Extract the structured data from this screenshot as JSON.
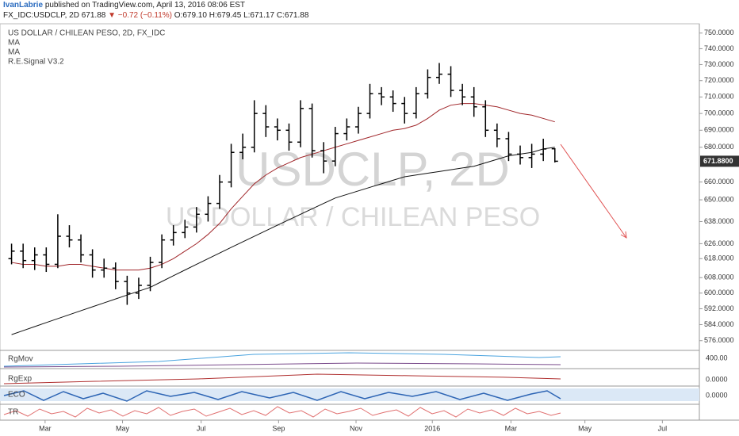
{
  "header": {
    "publisher": "IvanLabrie",
    "published": "published on TradingView.com, April 13, 2016 08:06 EST",
    "symbol": "FX_IDC:USDCLP, 2D",
    "last": "671.88",
    "change": "▼ −0.72 (−0.11%)",
    "open": "O:679.10",
    "high": "H:679.45",
    "low": "L:671.17",
    "close": "C:671.88"
  },
  "legend": [
    "US DOLLAR / CHILEAN PESO, 2D, FX_IDC",
    "MA",
    "MA",
    "R.E.Signal V3.2"
  ],
  "watermark": {
    "symbol": "USDCLP, 2D",
    "name": "US DOLLAR / CHILEAN PESO"
  },
  "last_price_label": "671.8800",
  "panes": [
    {
      "name": "RgMov",
      "label": "400.00"
    },
    {
      "name": "RgExp",
      "label": "0.0000"
    },
    {
      "name": "ECO",
      "label": "0.0000"
    },
    {
      "name": "TR"
    }
  ],
  "chart_data": {
    "type": "ohlc",
    "log_scale": true,
    "bar_color": "#000000",
    "x": [
      1,
      2,
      3,
      4,
      5,
      6,
      7,
      8,
      9,
      10,
      11,
      12,
      13,
      14,
      15,
      16,
      17,
      18,
      19,
      20,
      21,
      22,
      23,
      24,
      25,
      26,
      27,
      28,
      29,
      30,
      31,
      32,
      33,
      34,
      35,
      36,
      37,
      38,
      39,
      40,
      41,
      42,
      43,
      44,
      45,
      46,
      47,
      48
    ],
    "open": [
      618,
      622,
      617,
      620,
      615,
      630,
      628,
      620,
      612,
      613,
      606,
      600,
      604,
      616,
      628,
      632,
      635,
      642,
      648,
      660,
      677,
      680,
      700,
      692,
      690,
      683,
      703,
      678,
      672,
      688,
      692,
      700,
      712,
      710,
      706,
      700,
      712,
      722,
      724,
      714,
      710,
      704,
      690,
      685,
      676,
      674,
      676,
      679.1
    ],
    "high": [
      626,
      626,
      624,
      624,
      642,
      636,
      631,
      623,
      618,
      616,
      609,
      608,
      619,
      631,
      636,
      639,
      646,
      652,
      664,
      682,
      688,
      708,
      705,
      697,
      694,
      708,
      706,
      683,
      692,
      697,
      704,
      718,
      716,
      714,
      710,
      716,
      727,
      731,
      729,
      718,
      716,
      708,
      694,
      689,
      681,
      682,
      685,
      679.45
    ],
    "low": [
      615,
      613,
      612,
      611,
      613,
      624,
      616,
      608,
      608,
      602,
      594,
      597,
      601,
      613,
      625,
      629,
      632,
      638,
      645,
      657,
      673,
      677,
      686,
      684,
      678,
      680,
      674,
      665,
      669,
      684,
      688,
      697,
      705,
      701,
      694,
      697,
      709,
      718,
      710,
      705,
      698,
      686,
      680,
      672,
      670,
      668,
      672,
      671.17
    ],
    "close": [
      622,
      617,
      620,
      615,
      630,
      628,
      620,
      612,
      613,
      606,
      600,
      604,
      616,
      628,
      632,
      635,
      642,
      648,
      660,
      677,
      680,
      700,
      692,
      690,
      683,
      703,
      678,
      672,
      688,
      692,
      700,
      712,
      710,
      706,
      700,
      712,
      722,
      724,
      714,
      710,
      704,
      690,
      685,
      676,
      674,
      676,
      679,
      671.88
    ],
    "series": [
      {
        "name": "MA",
        "color": "#a0262a",
        "values": [
          616,
          615,
          615,
          614,
          614,
          615,
          615,
          614,
          613,
          612,
          612,
          612,
          613,
          615,
          618,
          622,
          626,
          631,
          637,
          645,
          652,
          659,
          664,
          668,
          671,
          674,
          676,
          678,
          680,
          682,
          684,
          686,
          688,
          690,
          691,
          693,
          697,
          702,
          705,
          706,
          706,
          705,
          704,
          702,
          700,
          699,
          697,
          695
        ]
      },
      {
        "name": "MA",
        "color": "#111111",
        "values": [
          579,
          581,
          583,
          585,
          587,
          589,
          591,
          593,
          595,
          597,
          599,
          601,
          603,
          606,
          609,
          612,
          615,
          618,
          621,
          624,
          627,
          630,
          633,
          636,
          639,
          642,
          645,
          648,
          651,
          653,
          655,
          657,
          659,
          661,
          663,
          664,
          665,
          666,
          667,
          668,
          669,
          671,
          673,
          675,
          676,
          677,
          679,
          680
        ]
      }
    ],
    "xlim": [
      0,
      60.5
    ],
    "xticks": [
      {
        "value": 3.9,
        "label": "Mar"
      },
      {
        "value": 10.6,
        "label": "May"
      },
      {
        "value": 17.4,
        "label": "Jul"
      },
      {
        "value": 24.1,
        "label": "Sep"
      },
      {
        "value": 30.8,
        "label": "Nov"
      },
      {
        "value": 37.4,
        "label": "2016"
      },
      {
        "value": 44.2,
        "label": "Mar"
      },
      {
        "value": 50.6,
        "label": "May"
      },
      {
        "value": 57.3,
        "label": "Jul"
      }
    ],
    "ylim": [
      572,
      756
    ],
    "yticks": [
      {
        "value": 576,
        "label": "576.0000"
      },
      {
        "value": 584,
        "label": "584.0000"
      },
      {
        "value": 592,
        "label": "592.0000"
      },
      {
        "value": 600,
        "label": "600.0000"
      },
      {
        "value": 608,
        "label": "608.0000"
      },
      {
        "value": 618,
        "label": "618.0000"
      },
      {
        "value": 626,
        "label": "626.0000"
      },
      {
        "value": 638,
        "label": "638.0000"
      },
      {
        "value": 650,
        "label": "650.0000"
      },
      {
        "value": 660,
        "label": "660.0000"
      },
      {
        "value": 680,
        "label": "680.0000"
      },
      {
        "value": 690,
        "label": "690.0000"
      },
      {
        "value": 700,
        "label": "700.0000"
      },
      {
        "value": 710,
        "label": "710.0000"
      },
      {
        "value": 720,
        "label": "720.0000"
      },
      {
        "value": 730,
        "label": "730.0000"
      },
      {
        "value": 740,
        "label": "740.0000"
      },
      {
        "value": 750,
        "label": "750.0000"
      }
    ],
    "grid": false
  }
}
